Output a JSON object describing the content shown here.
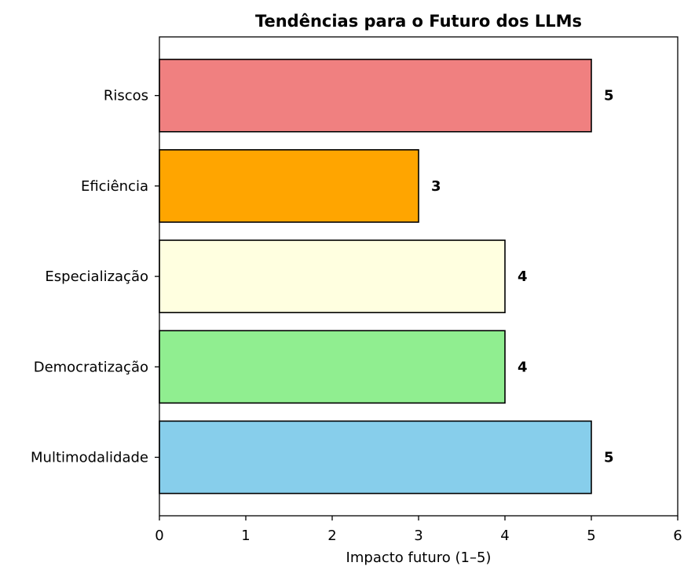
{
  "chart_data": {
    "type": "bar",
    "orientation": "horizontal",
    "title": "Tendências para o Futuro dos LLMs",
    "xlabel": "Impacto futuro (1–5)",
    "ylabel": "",
    "xlim": [
      0,
      6
    ],
    "xticks": [
      0,
      1,
      2,
      3,
      4,
      5,
      6
    ],
    "categories": [
      "Multimodalidade",
      "Democratização",
      "Especialização",
      "Eficiência",
      "Riscos"
    ],
    "values": [
      5,
      4,
      4,
      3,
      5
    ],
    "colors": [
      "#87ceeb",
      "#90ee90",
      "#ffffe0",
      "#ffa500",
      "#f08080"
    ],
    "edge_color": "#000000",
    "data_labels": [
      "5",
      "4",
      "4",
      "3",
      "5"
    ],
    "grid": false,
    "legend": "none"
  }
}
